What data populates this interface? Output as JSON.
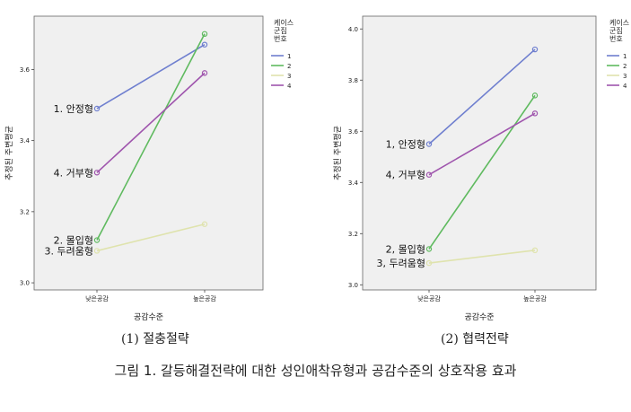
{
  "chart_data": [
    {
      "type": "line",
      "xlabel": "공감수준",
      "ylabel": "추정된 주변평균",
      "categories": [
        "낮은공감",
        "높은공감"
      ],
      "ylim": [
        2.98,
        3.75
      ],
      "yticks": [
        "3.0",
        "3.2",
        "3.4",
        "3.6"
      ],
      "legend_title": "케이스\n군집\n번호",
      "legend_placement": "right",
      "series": [
        {
          "name": "1",
          "label": "1. 안정형",
          "values": [
            3.49,
            3.67
          ],
          "color": "#6f7fcf"
        },
        {
          "name": "2",
          "label": "2. 몰입형",
          "values": [
            3.12,
            3.7
          ],
          "color": "#5fba5f"
        },
        {
          "name": "3",
          "label": "3. 두려움형",
          "values": [
            3.09,
            3.165
          ],
          "color": "#dfe3ad"
        },
        {
          "name": "4",
          "label": "4. 거부형",
          "values": [
            3.31,
            3.59
          ],
          "color": "#9f55ad"
        }
      ],
      "caption": "(1) 절충절략"
    },
    {
      "type": "line",
      "xlabel": "공감수준",
      "ylabel": "추정된 주변평균",
      "categories": [
        "낮은공감",
        "높은공감"
      ],
      "ylim": [
        2.98,
        4.05
      ],
      "yticks": [
        "3.0",
        "3.2",
        "3.4",
        "3.6",
        "3.8",
        "4.0"
      ],
      "legend_title": "케이스\n군집\n번호",
      "legend_placement": "right",
      "series": [
        {
          "name": "1",
          "label": "1, 안정형",
          "values": [
            3.55,
            3.92
          ],
          "color": "#6f7fcf"
        },
        {
          "name": "2",
          "label": "2, 몰입형",
          "values": [
            3.14,
            3.74
          ],
          "color": "#5fba5f"
        },
        {
          "name": "3",
          "label": "3, 두려움형",
          "values": [
            3.085,
            3.135
          ],
          "color": "#dfe3ad"
        },
        {
          "name": "4",
          "label": "4, 거부형",
          "values": [
            3.43,
            3.67
          ],
          "color": "#9f55ad"
        }
      ],
      "caption": "(2) 협력전략"
    }
  ],
  "figure_caption": "그림 1. 갈등해결전략에 대한 성인애착유형과 공감수준의 상호작용 효과"
}
